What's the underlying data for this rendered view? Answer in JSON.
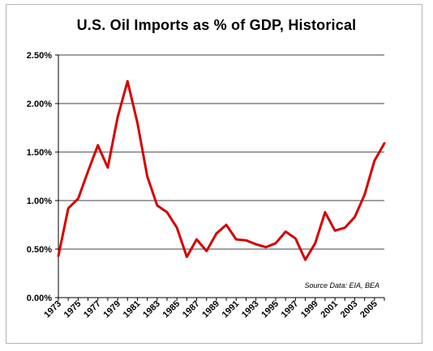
{
  "chart_data": {
    "type": "line",
    "title": "U.S. Oil Imports as % of GDP, Historical",
    "annotation": "Source Data: EIA, BEA",
    "ylim": [
      0,
      2.5
    ],
    "xlim": [
      1973,
      2006
    ],
    "y_ticks": [
      "0.00%",
      "0.50%",
      "1.00%",
      "1.50%",
      "2.00%",
      "2.50%"
    ],
    "y_tick_values": [
      0,
      0.5,
      1.0,
      1.5,
      2.0,
      2.5
    ],
    "x_tick_labels": [
      "1973",
      "1975",
      "1977",
      "1979",
      "1981",
      "1983",
      "1985",
      "1987",
      "1989",
      "1991",
      "1993",
      "1995",
      "1997",
      "1999",
      "2001",
      "2003",
      "2005"
    ],
    "grid": "horizontal",
    "series_color": "#d40000",
    "series": [
      {
        "x": [
          1973,
          1974,
          1975,
          1976,
          1977,
          1978,
          1979,
          1980,
          1981,
          1982,
          1983,
          1984,
          1985,
          1986,
          1987,
          1988,
          1989,
          1990,
          1991,
          1992,
          1993,
          1994,
          1995,
          1996,
          1997,
          1998,
          1999,
          2000,
          2001,
          2002,
          2003,
          2004,
          2005,
          2006
        ],
        "values": [
          0.43,
          0.92,
          1.02,
          1.3,
          1.57,
          1.34,
          1.86,
          2.23,
          1.8,
          1.25,
          0.95,
          0.88,
          0.72,
          0.42,
          0.6,
          0.48,
          0.66,
          0.75,
          0.6,
          0.59,
          0.55,
          0.52,
          0.56,
          0.68,
          0.61,
          0.39,
          0.56,
          0.88,
          0.69,
          0.72,
          0.83,
          1.06,
          1.41,
          1.59
        ]
      }
    ]
  }
}
